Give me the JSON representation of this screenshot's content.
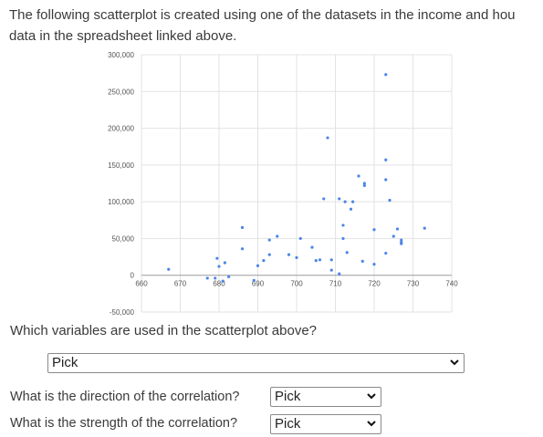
{
  "intro": {
    "line1": "The following scatterplot is created using one of the datasets in the income and hou",
    "line2": "data in the spreadsheet linked above."
  },
  "chart_data": {
    "type": "scatter",
    "title": "",
    "xlabel": "",
    "ylabel": "",
    "xlim": [
      660,
      740
    ],
    "ylim": [
      -50000,
      300000
    ],
    "xticks": [
      660,
      670,
      680,
      690,
      700,
      710,
      720,
      730,
      740
    ],
    "yticks": [
      -50000,
      0,
      50000,
      100000,
      150000,
      200000,
      250000,
      300000
    ],
    "xtick_labels": [
      "660",
      "670",
      "680",
      "690",
      "700",
      "710",
      "720",
      "730",
      "740"
    ],
    "ytick_labels": [
      "-50,000",
      "0",
      "50,000",
      "100,000",
      "150,000",
      "200,000",
      "250,000",
      "300,000"
    ],
    "grid": true,
    "point_color": "#4a86e8",
    "points": [
      {
        "x": 667,
        "y": 8000
      },
      {
        "x": 677,
        "y": -4000
      },
      {
        "x": 679,
        "y": -4000
      },
      {
        "x": 679.5,
        "y": 23000
      },
      {
        "x": 680,
        "y": 12000
      },
      {
        "x": 681,
        "y": -8000
      },
      {
        "x": 681.5,
        "y": 17000
      },
      {
        "x": 682.5,
        "y": -2000
      },
      {
        "x": 686,
        "y": 65000
      },
      {
        "x": 686,
        "y": 36000
      },
      {
        "x": 689,
        "y": -7000
      },
      {
        "x": 690,
        "y": 13000
      },
      {
        "x": 691.5,
        "y": 20000
      },
      {
        "x": 693,
        "y": 28000
      },
      {
        "x": 693,
        "y": 48000
      },
      {
        "x": 695,
        "y": 53000
      },
      {
        "x": 698,
        "y": 28000
      },
      {
        "x": 700,
        "y": 24000
      },
      {
        "x": 701,
        "y": 50000
      },
      {
        "x": 704,
        "y": 38000
      },
      {
        "x": 705,
        "y": 20000
      },
      {
        "x": 706,
        "y": 21000
      },
      {
        "x": 707,
        "y": 104000
      },
      {
        "x": 708,
        "y": 187000
      },
      {
        "x": 709,
        "y": 21000
      },
      {
        "x": 709,
        "y": 7000
      },
      {
        "x": 711,
        "y": 2000
      },
      {
        "x": 711,
        "y": 104000
      },
      {
        "x": 712,
        "y": 68000
      },
      {
        "x": 712,
        "y": 50000
      },
      {
        "x": 712.5,
        "y": 100000
      },
      {
        "x": 713,
        "y": 31000
      },
      {
        "x": 714,
        "y": 90000
      },
      {
        "x": 714.5,
        "y": 100000
      },
      {
        "x": 716,
        "y": 135000
      },
      {
        "x": 717.5,
        "y": 122000
      },
      {
        "x": 717.5,
        "y": 125000
      },
      {
        "x": 717,
        "y": 19000
      },
      {
        "x": 720,
        "y": 62000
      },
      {
        "x": 720,
        "y": 15000
      },
      {
        "x": 723,
        "y": 273000
      },
      {
        "x": 723,
        "y": 157000
      },
      {
        "x": 723,
        "y": 130000
      },
      {
        "x": 724,
        "y": 102000
      },
      {
        "x": 723,
        "y": 30000
      },
      {
        "x": 725,
        "y": 53000
      },
      {
        "x": 726,
        "y": 63000
      },
      {
        "x": 727,
        "y": 48000
      },
      {
        "x": 727,
        "y": 45000
      },
      {
        "x": 727,
        "y": 43000
      },
      {
        "x": 733,
        "y": 64000
      }
    ]
  },
  "questions": {
    "q1": {
      "text": "Which variables are used in the scatterplot above?",
      "value": "Pick"
    },
    "q2": {
      "text": "What is the direction of the correlation?",
      "value": "Pick"
    },
    "q3": {
      "text": "What is the strength of the correlation?",
      "value": "Pick"
    }
  }
}
